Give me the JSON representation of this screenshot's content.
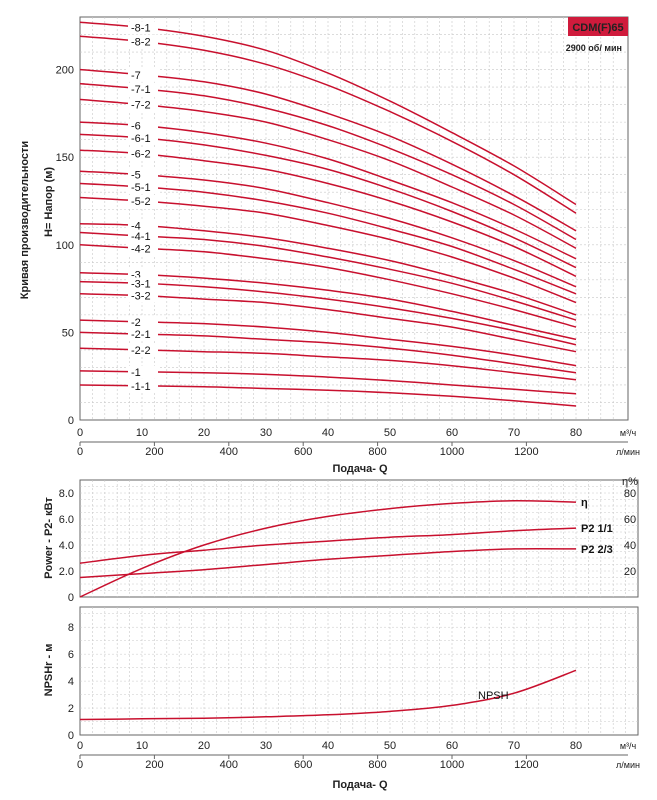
{
  "chart_data": [
    {
      "type": "line",
      "title": "CDM(F)65",
      "subtitle": "2900 об/ мин",
      "ylabel_outer": "Кривая производительности",
      "ylabel": "H= Напор (м)",
      "xlabel": "Подача- Q",
      "x_unit_top": "м³/ч",
      "x_unit_bottom": "л/мин",
      "x_ticks_m3h": [
        "0",
        "10",
        "20",
        "30",
        "40",
        "50",
        "60",
        "70",
        "80"
      ],
      "x_ticks_lmin": [
        "0",
        "200",
        "400",
        "600",
        "800",
        "1000",
        "1200"
      ],
      "y_ticks": [
        "0",
        "50",
        "100",
        "150",
        "200"
      ],
      "xlim": [
        0,
        80
      ],
      "ylim": [
        0,
        230
      ],
      "grid": true,
      "x": [
        0,
        10,
        20,
        30,
        40,
        50,
        60,
        70,
        80
      ],
      "series": [
        {
          "name": "-8-1",
          "values": [
            227,
            224,
            219,
            211,
            198,
            182,
            164,
            145,
            123
          ]
        },
        {
          "name": "-8-2",
          "values": [
            219,
            216,
            211,
            203,
            191,
            176,
            159,
            140,
            118
          ]
        },
        {
          "name": "-7",
          "values": [
            200,
            197,
            193,
            186,
            175,
            162,
            146,
            128,
            108
          ]
        },
        {
          "name": "-7-1",
          "values": [
            192,
            189,
            185,
            178,
            168,
            155,
            140,
            123,
            103
          ]
        },
        {
          "name": "-7-2",
          "values": [
            183,
            180,
            176,
            170,
            160,
            148,
            133,
            117,
            98
          ]
        },
        {
          "name": "-6",
          "values": [
            170,
            168,
            164,
            158,
            149,
            137,
            124,
            109,
            92
          ]
        },
        {
          "name": "-6-1",
          "values": [
            163,
            161,
            157,
            151,
            143,
            132,
            119,
            104,
            87
          ]
        },
        {
          "name": "-6-2",
          "values": [
            154,
            152,
            148,
            143,
            135,
            125,
            113,
            99,
            82
          ]
        },
        {
          "name": "-5",
          "values": [
            142,
            140,
            137,
            132,
            124,
            115,
            104,
            91,
            76
          ]
        },
        {
          "name": "-5-1",
          "values": [
            135,
            133,
            130,
            125,
            118,
            109,
            99,
            86,
            72
          ]
        },
        {
          "name": "-5-2",
          "values": [
            127,
            125,
            122,
            118,
            111,
            103,
            93,
            81,
            67
          ]
        },
        {
          "name": "-4",
          "values": [
            112,
            111,
            108,
            104,
            98,
            91,
            82,
            72,
            60
          ]
        },
        {
          "name": "-4-1",
          "values": [
            107,
            105,
            103,
            99,
            93,
            86,
            78,
            68,
            57
          ]
        },
        {
          "name": "-4-2",
          "values": [
            100,
            98,
            96,
            92,
            87,
            80,
            72,
            63,
            53
          ]
        },
        {
          "name": "-3",
          "values": [
            84,
            83,
            81,
            78,
            74,
            69,
            62,
            54,
            46
          ]
        },
        {
          "name": "-3-1",
          "values": [
            79,
            78,
            76,
            73,
            69,
            64,
            58,
            51,
            43
          ]
        },
        {
          "name": "-3-2",
          "values": [
            72,
            71,
            69,
            67,
            63,
            58,
            53,
            46,
            39
          ]
        },
        {
          "name": "-2",
          "values": [
            57,
            56,
            55,
            53,
            50,
            46,
            42,
            37,
            31
          ]
        },
        {
          "name": "-2-1",
          "values": [
            50,
            49,
            48,
            46,
            44,
            41,
            37,
            32,
            27
          ]
        },
        {
          "name": "-2-2",
          "values": [
            41,
            40,
            39,
            38,
            36,
            34,
            31,
            27,
            23
          ]
        },
        {
          "name": "-1",
          "values": [
            28,
            27.5,
            27,
            26,
            24.5,
            22.5,
            20,
            17.5,
            15
          ]
        },
        {
          "name": "-1-1",
          "values": [
            20,
            19.5,
            19,
            18,
            17,
            15.5,
            13.5,
            11,
            8
          ]
        }
      ]
    },
    {
      "type": "line",
      "ylabel": "Power - P2- кВт",
      "y_ticks": [
        "0",
        "2.0",
        "4.0",
        "6.0",
        "8.0"
      ],
      "ylim": [
        0,
        9
      ],
      "y2label": "η%",
      "y2_ticks": [
        "20",
        "40",
        "60",
        "80"
      ],
      "y2lim": [
        0,
        90
      ],
      "xlim": [
        0,
        80
      ],
      "grid": true,
      "x": [
        0,
        10,
        20,
        30,
        40,
        50,
        60,
        70,
        80
      ],
      "series": [
        {
          "name": "η",
          "axis": "right",
          "values": [
            0,
            22,
            40,
            53,
            62,
            68,
            72,
            74,
            73
          ]
        },
        {
          "name": "P2 1/1",
          "axis": "left",
          "values": [
            2.6,
            3.2,
            3.6,
            4.0,
            4.3,
            4.6,
            4.8,
            5.1,
            5.3
          ]
        },
        {
          "name": "P2 2/3",
          "axis": "left",
          "values": [
            1.5,
            1.8,
            2.1,
            2.5,
            2.9,
            3.2,
            3.5,
            3.7,
            3.7
          ]
        }
      ]
    },
    {
      "type": "line",
      "ylabel": "NPSHr - м",
      "xlabel": "Подача- Q",
      "x_unit_top": "м³/ч",
      "x_unit_bottom": "л/мин",
      "x_ticks_m3h": [
        "0",
        "10",
        "20",
        "30",
        "40",
        "50",
        "60",
        "70",
        "80"
      ],
      "x_ticks_lmin": [
        "0",
        "200",
        "400",
        "600",
        "800",
        "1000",
        "1200"
      ],
      "y_ticks": [
        "0",
        "2",
        "4",
        "6",
        "8"
      ],
      "ylim": [
        0,
        9.5
      ],
      "xlim": [
        0,
        80
      ],
      "grid": true,
      "x": [
        0,
        10,
        20,
        30,
        40,
        50,
        60,
        70,
        80
      ],
      "series": [
        {
          "name": "NPSH",
          "values": [
            1.15,
            1.2,
            1.25,
            1.35,
            1.5,
            1.75,
            2.2,
            3.1,
            4.8
          ]
        }
      ]
    }
  ],
  "colors": {
    "curve": "#c8102e",
    "grid": "#c8c8c8",
    "badge": "#cf1b3c"
  }
}
